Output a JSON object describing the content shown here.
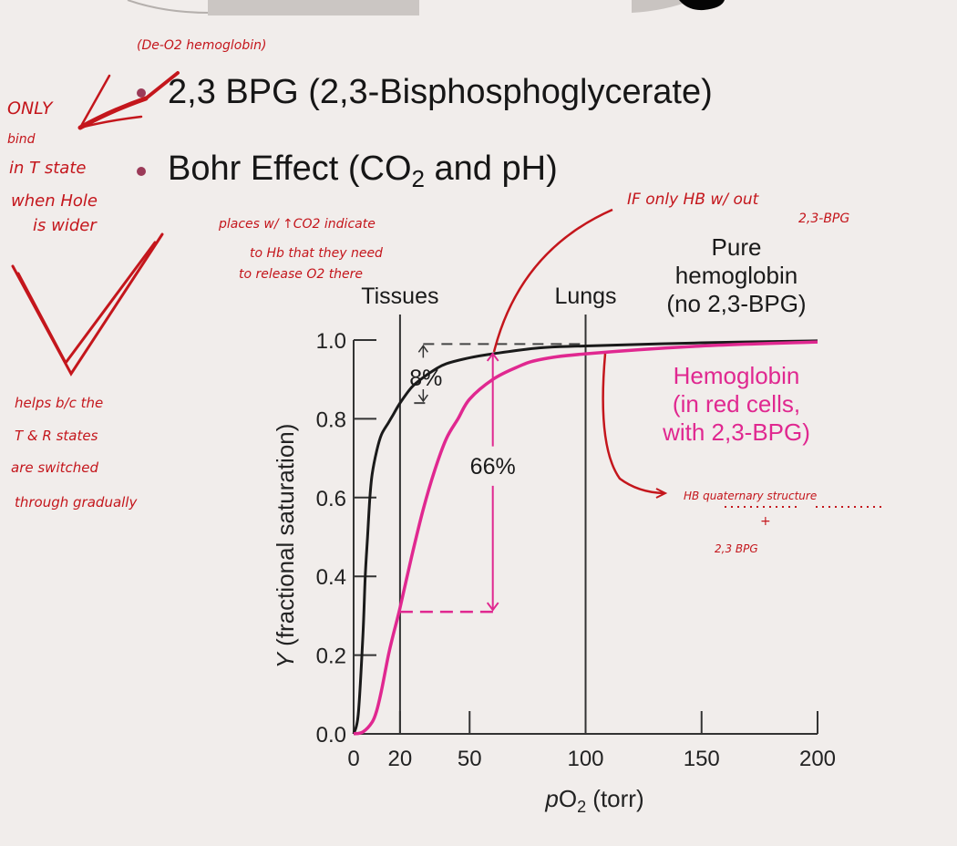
{
  "slide": {
    "bullets": [
      {
        "text": "2,3 BPG (2,3-Bisphosphoglycerate)"
      },
      {
        "text_pre": "Bohr Effect (CO",
        "text_sub": "2",
        "text_post": " and pH)"
      }
    ]
  },
  "annotations": {
    "deoxy_note": "(De-O2 hemoglobin)",
    "left_note_lines": [
      "ONLY",
      "bind",
      "in T state",
      "when Hole",
      "is wider"
    ],
    "left_bottom_lines": [
      "helps b/c the",
      "T & R states",
      "are switched",
      "through gradually"
    ],
    "bohr_note_lines": [
      "places w/ ↑CO2 indicate",
      "to Hb that they need",
      "to release O2 there"
    ],
    "if_only_lines": [
      "IF only HB w/ out",
      "2,3-BPG"
    ],
    "quaternary_lines": [
      "HB quaternary structure",
      "+",
      "2,3 BPG"
    ]
  },
  "colors": {
    "background": "#f1edeb",
    "pure_curve": "#1a1a1a",
    "bpg_curve": "#e02890",
    "ink": "#c4161c",
    "bullet": "#9b3a58"
  },
  "chart_data": {
    "type": "line",
    "title": "",
    "xlabel": "pO2 (torr)",
    "ylabel": "Y (fractional saturation)",
    "xlim": [
      0,
      200
    ],
    "ylim": [
      0,
      1.0
    ],
    "x_ticks": [
      0,
      20,
      50,
      100,
      150,
      200
    ],
    "y_ticks": [
      "0.0",
      "0.2",
      "0.4",
      "0.6",
      "0.8",
      "1.0"
    ],
    "grid": false,
    "series": [
      {
        "name": "Pure hemoglobin (no 2,3-BPG)",
        "color": "#1a1a1a",
        "x": [
          0,
          2,
          4,
          5,
          6,
          7,
          8,
          10,
          12,
          15,
          17,
          20,
          25,
          30,
          35,
          40,
          50,
          60,
          80,
          100,
          150,
          200
        ],
        "y": [
          0.0,
          0.05,
          0.25,
          0.4,
          0.5,
          0.6,
          0.66,
          0.72,
          0.76,
          0.79,
          0.81,
          0.84,
          0.88,
          0.905,
          0.925,
          0.94,
          0.955,
          0.965,
          0.98,
          0.985,
          0.993,
          0.998
        ]
      },
      {
        "name": "Hemoglobin (in red cells, with 2,3-BPG)",
        "color": "#e02890",
        "x": [
          0,
          4,
          8,
          10,
          12,
          15,
          17,
          20,
          25,
          30,
          35,
          40,
          45,
          50,
          60,
          70,
          80,
          100,
          150,
          200
        ],
        "y": [
          0.0,
          0.005,
          0.03,
          0.06,
          0.11,
          0.2,
          0.25,
          0.32,
          0.45,
          0.57,
          0.67,
          0.75,
          0.8,
          0.85,
          0.9,
          0.93,
          0.95,
          0.965,
          0.985,
          0.995
        ]
      }
    ],
    "vertical_markers": [
      {
        "x": 20,
        "label": "Tissues"
      },
      {
        "x": 100,
        "label": "Lungs"
      }
    ],
    "annotations": [
      {
        "label": "8%",
        "x": 30,
        "y_from": 0.84,
        "y_to": 0.99
      },
      {
        "label": "66%",
        "x": 60,
        "y_from": 0.31,
        "y_to": 0.97
      }
    ],
    "legend_labels": [
      {
        "lines": [
          "Pure",
          "hemoglobin",
          "(no 2,3-BPG)"
        ],
        "color": "#1a1a1a"
      },
      {
        "lines": [
          "Hemoglobin",
          "(in red cells,",
          "with 2,3-BPG)"
        ],
        "color": "#e02890"
      }
    ]
  }
}
